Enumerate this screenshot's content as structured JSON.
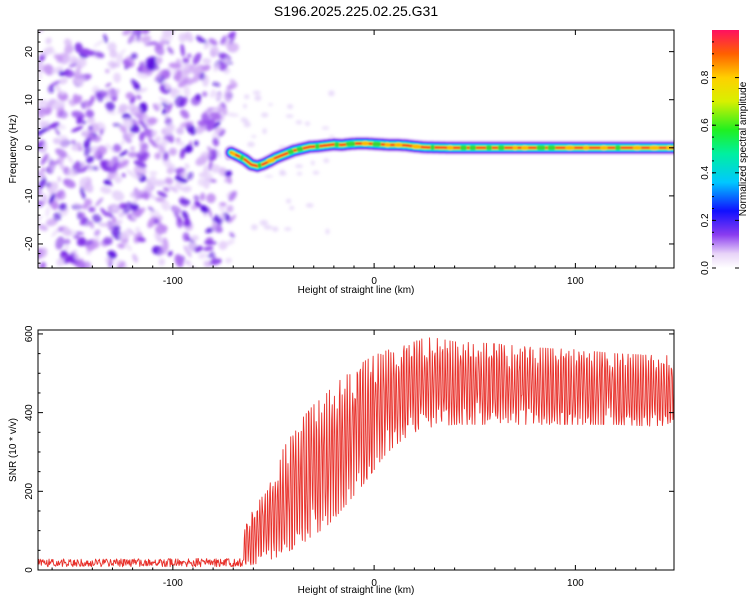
{
  "chart_data": [
    {
      "type": "heatmap",
      "title": "S196.2025.225.02.25.G31",
      "xlabel": "Height of straight line (km)",
      "ylabel": "Frequency (Hz)",
      "xlim": [
        -167,
        149
      ],
      "ylim": [
        -25,
        24.5
      ],
      "xticks": [
        -100,
        0,
        100
      ],
      "xtick_labels": [
        "-100",
        "0",
        "100"
      ],
      "yticks": [
        -20,
        -10,
        0,
        10,
        20
      ],
      "ytick_labels": [
        "-20",
        "-10",
        "0",
        "10",
        "20"
      ],
      "noise_region_x": [
        -167,
        -71
      ],
      "transition_x": -71,
      "ridge": {
        "x": [
          -71,
          -67,
          -64,
          -61,
          -58,
          -55,
          -52,
          -49,
          -46,
          -43,
          -40,
          -36,
          -32,
          -28,
          -24,
          -20,
          -16,
          -12,
          -8,
          -4,
          0,
          4,
          8,
          12,
          16,
          20,
          25,
          40,
          60,
          80,
          100,
          120,
          140,
          149
        ],
        "y": [
          -1,
          -1.8,
          -2.5,
          -3.5,
          -3.8,
          -3.4,
          -2.8,
          -2.1,
          -1.6,
          -1.1,
          -0.6,
          -0.2,
          0.2,
          0.3,
          0.5,
          0.7,
          0.6,
          0.8,
          0.9,
          0.9,
          0.8,
          0.7,
          0.6,
          0.6,
          0.5,
          0.3,
          0.1,
          0,
          0,
          0,
          0,
          0,
          0,
          0
        ]
      },
      "colorbar": {
        "label": "Normalized spectral amplitude",
        "range": [
          0,
          1
        ],
        "ticks": [
          0,
          0.2,
          0.4,
          0.6,
          0.8
        ],
        "tick_labels": [
          "0.0",
          "0.2",
          "0.4",
          "0.6",
          "0.8"
        ]
      }
    },
    {
      "type": "line",
      "xlabel": "Height of straight line (km)",
      "ylabel": "SNR (10 * v/v)",
      "xlim": [
        -167,
        149
      ],
      "ylim": [
        0,
        610
      ],
      "xticks": [
        -100,
        0,
        100
      ],
      "xtick_labels": [
        "-100",
        "0",
        "100"
      ],
      "yticks": [
        0,
        200,
        400,
        600
      ],
      "ytick_labels": [
        "0",
        "200",
        "400",
        "600"
      ],
      "series": [
        {
          "name": "SNR",
          "color": "#e8302a",
          "envelope": {
            "x": [
              -167,
              -65,
              -64,
              -55,
              -50,
              -45,
              -40,
              -35,
              -30,
              -25,
              -20,
              -15,
              -10,
              -5,
              0,
              5,
              10,
              15,
              20,
              25,
              30,
              40,
              60,
              80,
              100,
              120,
              140,
              149
            ],
            "low": [
              8,
              8,
              10,
              20,
              30,
              40,
              55,
              70,
              90,
              105,
              130,
              160,
              190,
              220,
              255,
              290,
              315,
              335,
              350,
              360,
              365,
              370,
              370,
              370,
              370,
              370,
              365,
              360
            ],
            "high": [
              28,
              30,
              130,
              190,
              240,
              310,
              350,
              390,
              420,
              440,
              470,
              490,
              510,
              530,
              545,
              555,
              565,
              570,
              580,
              590,
              590,
              580,
              575,
              565,
              560,
              550,
              545,
              545
            ]
          }
        }
      ]
    }
  ]
}
